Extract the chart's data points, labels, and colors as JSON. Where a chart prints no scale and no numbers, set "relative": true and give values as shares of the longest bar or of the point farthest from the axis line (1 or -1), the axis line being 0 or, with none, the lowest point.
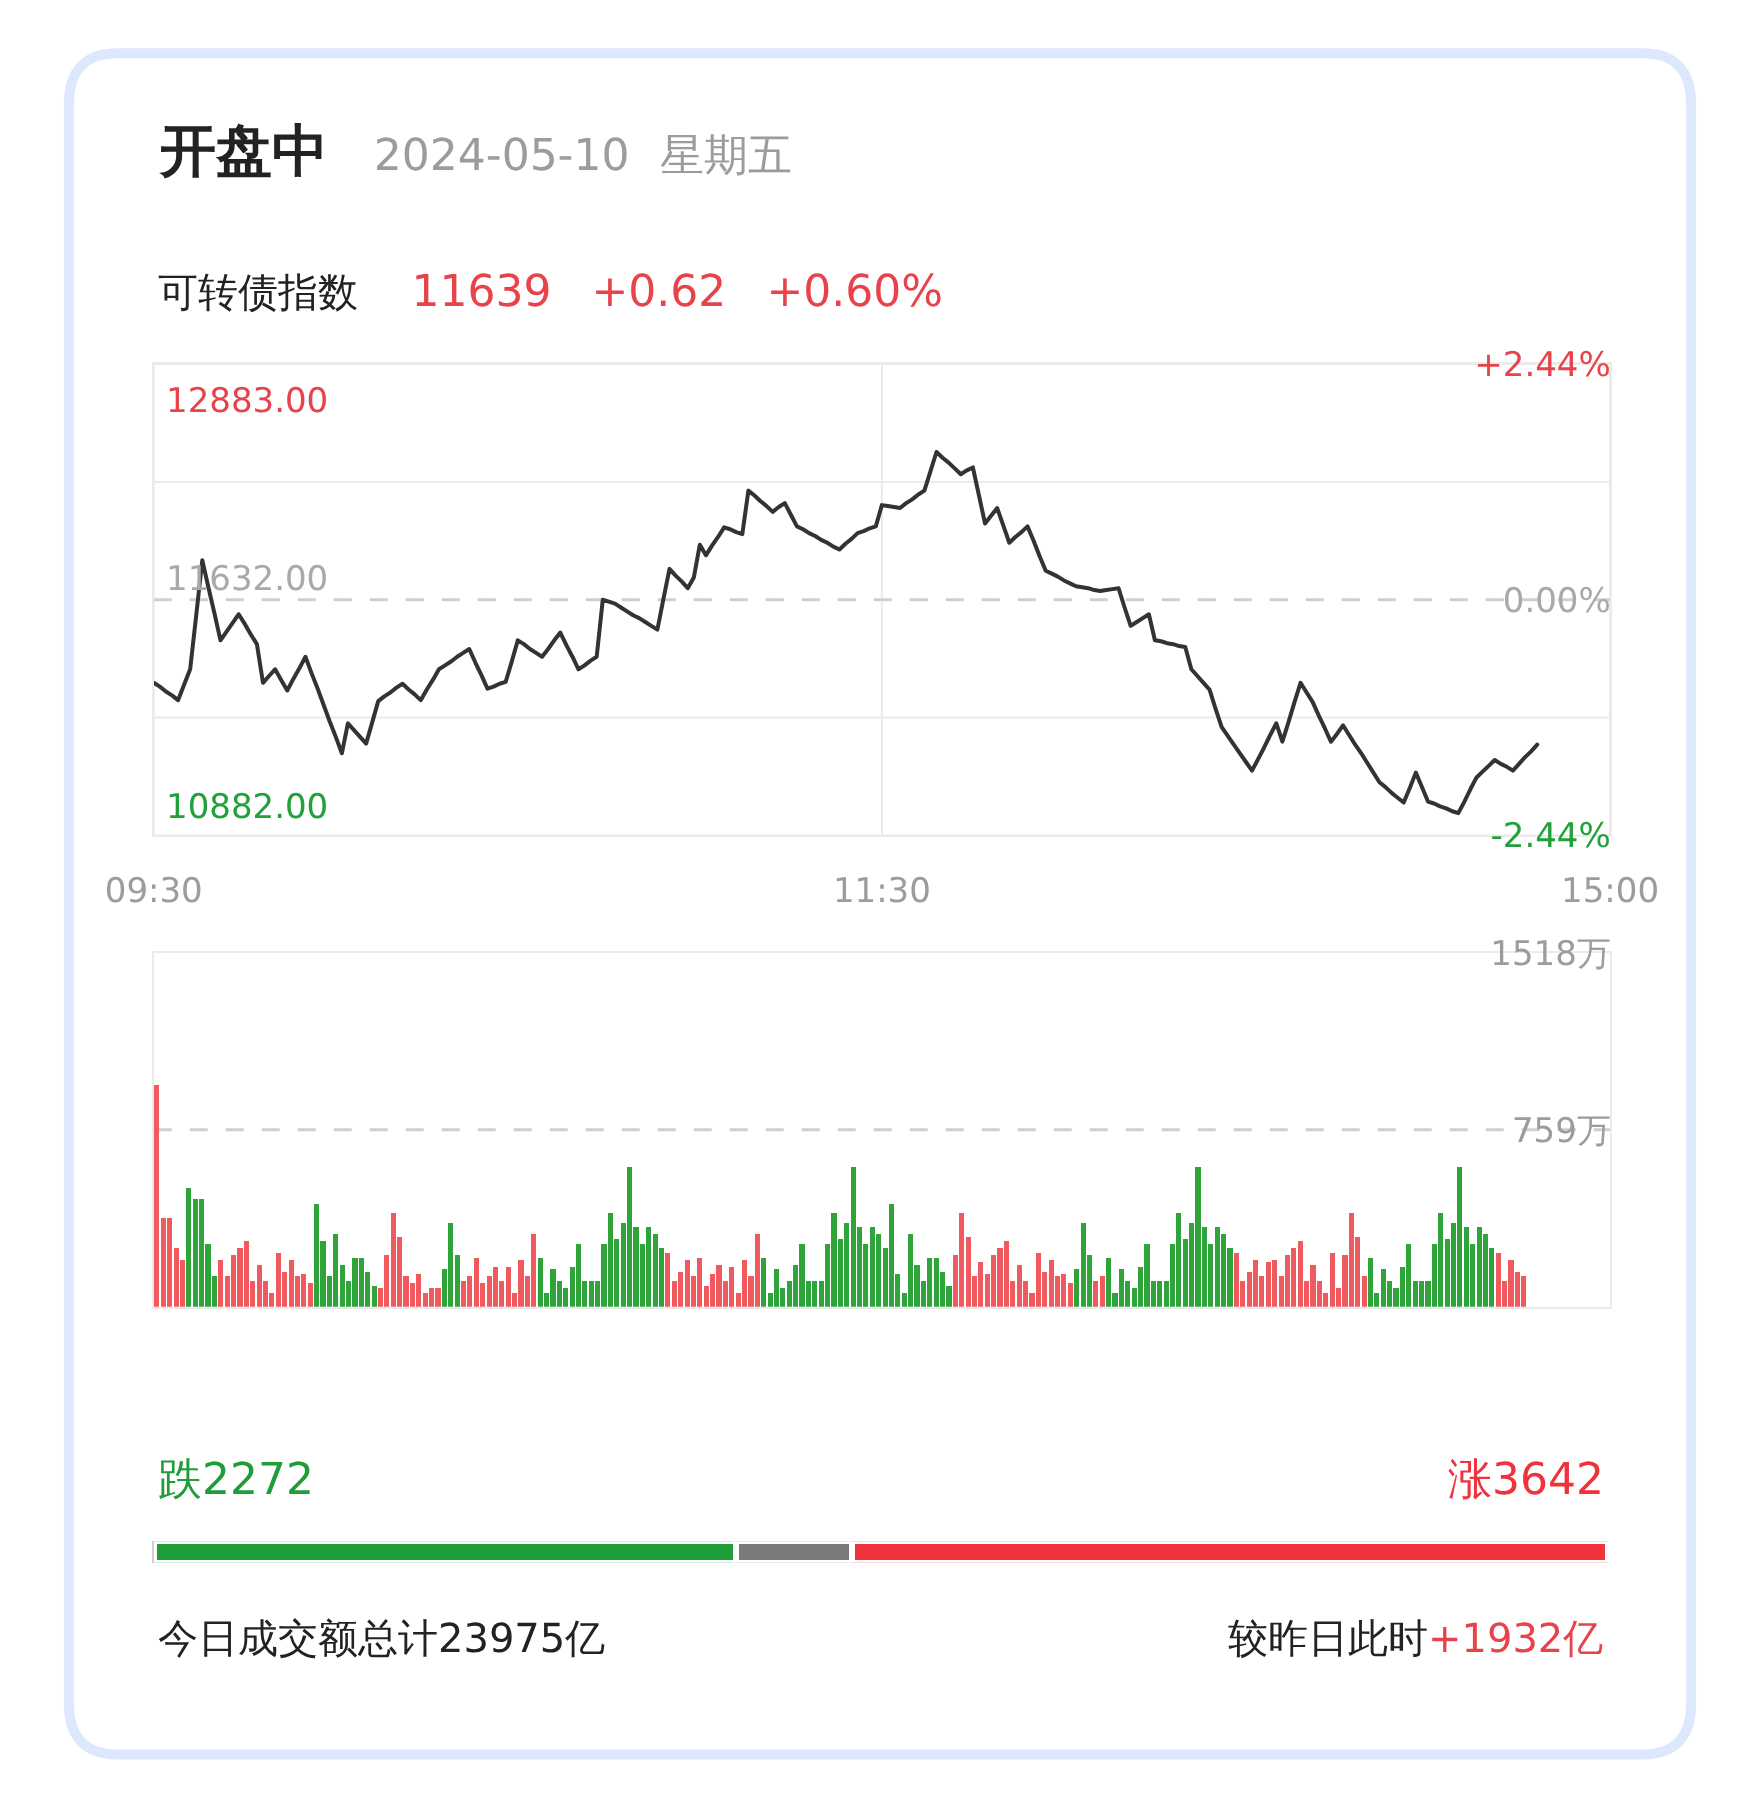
{
  "chart_data": [
    {
      "type": "line",
      "title": "开盘中 2024-05-10 星期五",
      "subtitle": "可转债指数 11639 +0.62 +0.60%",
      "categories": [
        "09:30",
        null,
        null,
        null,
        null,
        null,
        null,
        null,
        null,
        null,
        null,
        null,
        null,
        null,
        null,
        null,
        null,
        null,
        null,
        null,
        null,
        null,
        null,
        null,
        null,
        null,
        null,
        null,
        null,
        null,
        null,
        null,
        null,
        null,
        null,
        null,
        null,
        null,
        null,
        null,
        null,
        null,
        null,
        null,
        null,
        null,
        null,
        null,
        null,
        null,
        null,
        null,
        null,
        null,
        null,
        null,
        null,
        null,
        null,
        null,
        null,
        null,
        null,
        null,
        null,
        null,
        null,
        null,
        null,
        null,
        null,
        null,
        null,
        null,
        null,
        null,
        null,
        null,
        null,
        null,
        null,
        null,
        null,
        null,
        null,
        null,
        null,
        null,
        null,
        null,
        null,
        null,
        null,
        null,
        null,
        null,
        null,
        null,
        null,
        null,
        null,
        null,
        null,
        null,
        null,
        null,
        null,
        null,
        null,
        null,
        null,
        null,
        null,
        null,
        null,
        null,
        null,
        null,
        null,
        null,
        "11:30",
        null,
        null,
        null,
        null,
        null,
        null,
        null,
        null,
        null,
        null,
        null,
        null,
        null,
        null,
        null,
        null,
        null,
        null,
        null,
        null,
        null,
        null,
        null,
        null,
        null,
        null,
        null,
        null,
        null,
        null,
        null,
        null,
        null,
        null,
        null,
        null,
        null,
        null,
        null,
        null,
        null,
        null,
        null,
        null,
        null,
        null,
        null,
        null,
        null,
        null,
        null,
        null,
        null,
        null,
        null,
        null,
        null,
        null,
        null,
        null,
        null,
        null,
        null,
        null,
        null,
        null,
        null,
        null,
        null,
        null,
        null,
        null,
        null,
        null,
        null,
        null,
        null,
        null,
        null,
        null,
        null,
        null,
        null,
        null,
        null,
        null,
        null,
        null,
        null,
        null,
        null,
        null,
        null,
        null,
        null,
        null,
        null,
        null,
        null,
        null,
        null,
        null,
        null,
        null,
        null,
        null,
        null,
        null,
        null,
        null,
        null,
        null,
        null,
        null,
        null,
        null,
        null,
        null,
        null,
        "15:00"
      ],
      "series": [
        {
          "color": "#333333",
          "values": [
            -0.86,
            -0.9,
            -0.95,
            -0.99,
            -1.04,
            -0.88,
            -0.72,
            -0.16,
            0.41,
            0.13,
            -0.14,
            -0.42,
            -0.33,
            -0.24,
            -0.15,
            -0.25,
            -0.36,
            -0.46,
            -0.86,
            -0.79,
            -0.72,
            -0.83,
            -0.94,
            -0.82,
            -0.71,
            -0.59,
            -0.76,
            -0.92,
            -1.09,
            -1.26,
            -1.42,
            -1.59,
            -1.28,
            -1.35,
            -1.42,
            -1.49,
            -1.27,
            -1.05,
            -1.0,
            -0.96,
            -0.91,
            -0.87,
            -0.93,
            -0.98,
            -1.04,
            -0.93,
            -0.83,
            -0.72,
            -0.68,
            -0.64,
            -0.59,
            -0.55,
            -0.51,
            -0.65,
            -0.78,
            -0.92,
            -0.9,
            -0.87,
            -0.85,
            -0.64,
            -0.42,
            -0.46,
            -0.51,
            -0.55,
            -0.59,
            -0.51,
            -0.42,
            -0.34,
            -0.47,
            -0.59,
            -0.72,
            -0.68,
            -0.63,
            -0.59,
            0.0,
            -0.02,
            -0.04,
            -0.08,
            -0.12,
            -0.16,
            -0.19,
            -0.23,
            -0.27,
            -0.31,
            0.01,
            0.32,
            0.25,
            0.19,
            0.12,
            0.23,
            0.57,
            0.46,
            0.56,
            0.65,
            0.75,
            0.73,
            0.7,
            0.68,
            1.13,
            1.08,
            1.02,
            0.97,
            0.91,
            0.96,
            1.0,
            0.88,
            0.76,
            0.73,
            0.69,
            0.66,
            0.62,
            0.59,
            0.55,
            0.52,
            0.58,
            0.63,
            0.69,
            0.71,
            0.74,
            0.76,
            0.98,
            0.97,
            0.96,
            0.95,
            1.0,
            1.04,
            1.09,
            1.13,
            1.33,
            1.53,
            1.47,
            1.42,
            1.36,
            1.3,
            1.34,
            1.37,
            1.08,
            0.79,
            0.87,
            0.95,
            0.77,
            0.59,
            0.65,
            0.7,
            0.76,
            0.61,
            0.45,
            0.3,
            0.27,
            0.24,
            0.2,
            0.17,
            0.14,
            0.13,
            0.12,
            0.1,
            0.09,
            0.1,
            0.11,
            0.12,
            -0.08,
            -0.27,
            -0.23,
            -0.19,
            -0.15,
            -0.42,
            -0.43,
            -0.45,
            -0.46,
            -0.48,
            -0.49,
            -0.72,
            -0.79,
            -0.86,
            -0.93,
            -1.13,
            -1.32,
            -1.41,
            -1.5,
            -1.59,
            -1.68,
            -1.77,
            -1.65,
            -1.53,
            -1.4,
            -1.28,
            -1.47,
            -1.27,
            -1.06,
            -0.86,
            -0.96,
            -1.06,
            -1.2,
            -1.33,
            -1.47,
            -1.39,
            -1.3,
            -1.4,
            -1.5,
            -1.59,
            -1.69,
            -1.79,
            -1.89,
            -1.94,
            -2.0,
            -2.05,
            -2.1,
            -1.95,
            -1.79,
            -1.94,
            -2.09,
            -2.11,
            -2.14,
            -2.16,
            -2.19,
            -2.21,
            -2.09,
            -1.96,
            -1.84,
            -1.78,
            -1.72,
            -1.66,
            -1.7,
            -1.73,
            -1.77,
            -1.7,
            -1.63,
            -1.57,
            -1.5,
            null,
            null,
            null,
            null,
            null,
            null,
            null,
            null,
            null,
            null,
            null,
            null
          ]
        }
      ],
      "ylim": [
        -2.44,
        2.44
      ],
      "yticks": [
        {
          "value": 2.44,
          "label": "+2.44%"
        },
        {
          "value": 1.22,
          "label": null
        },
        {
          "value": 0,
          "label": "0.00%"
        },
        {
          "value": -1.22,
          "label": null
        },
        {
          "value": -2.44,
          "label": "-2.44%"
        }
      ],
      "annotations": [
        "12883.00",
        "11632.00",
        "10882.00"
      ],
      "ref_lines": [
        {
          "axis": "y",
          "value": 0,
          "color": "#cfcfcf",
          "line_style": "dashed"
        }
      ],
      "grid": true,
      "legend": false,
      "marker": "none"
    },
    {
      "type": "bar",
      "categories": [
        null,
        null,
        null,
        null,
        null,
        null,
        null,
        null,
        null,
        null,
        null,
        null,
        null,
        null,
        null,
        null,
        null,
        null,
        null,
        null,
        null,
        null,
        null,
        null,
        null,
        null,
        null,
        null,
        null,
        null,
        null,
        null,
        null,
        null,
        null,
        null,
        null,
        null,
        null,
        null,
        null,
        null,
        null,
        null,
        null,
        null,
        null,
        null,
        null,
        null,
        null,
        null,
        null,
        null,
        null,
        null,
        null,
        null,
        null,
        null,
        null,
        null,
        null,
        null,
        null,
        null,
        null,
        null,
        null,
        null,
        null,
        null,
        null,
        null,
        null,
        null,
        null,
        null,
        null,
        null,
        null,
        null,
        null,
        null,
        null,
        null,
        null,
        null,
        null,
        null,
        null,
        null,
        null,
        null,
        null,
        null,
        null,
        null,
        null,
        null,
        null,
        null,
        null,
        null,
        null,
        null,
        null,
        null,
        null,
        null,
        null,
        null,
        null,
        null,
        null,
        null,
        null,
        null,
        null,
        null,
        null,
        null,
        null,
        null,
        null,
        null,
        null,
        null,
        null,
        null,
        null,
        null,
        null,
        null,
        null,
        null,
        null,
        null,
        null,
        null,
        null,
        null,
        null,
        null,
        null,
        null,
        null,
        null,
        null,
        null,
        null,
        null,
        null,
        null,
        null,
        null,
        null,
        null,
        null,
        null,
        null,
        null,
        null,
        null,
        null,
        null,
        null,
        null,
        null,
        null,
        null,
        null,
        null,
        null,
        null,
        null,
        null,
        null,
        null,
        null,
        null,
        null,
        null,
        null,
        null,
        null,
        null,
        null,
        null,
        null,
        null,
        null,
        null,
        null,
        null,
        null,
        null,
        null,
        null,
        null,
        null,
        null,
        null,
        null,
        null,
        null,
        null,
        null,
        null,
        null,
        null,
        null,
        null,
        null,
        null,
        null,
        null,
        null,
        null,
        null,
        null,
        null,
        null,
        null,
        null,
        null,
        null,
        null
      ],
      "values": [
        950,
        380,
        380,
        250,
        200,
        510,
        460,
        460,
        270,
        130,
        200,
        130,
        220,
        250,
        280,
        110,
        180,
        110,
        60,
        230,
        150,
        200,
        130,
        140,
        100,
        440,
        280,
        130,
        310,
        180,
        110,
        210,
        210,
        150,
        90,
        80,
        220,
        400,
        300,
        130,
        100,
        140,
        60,
        80,
        80,
        160,
        360,
        220,
        110,
        130,
        210,
        100,
        130,
        170,
        110,
        170,
        60,
        200,
        130,
        310,
        210,
        60,
        160,
        110,
        80,
        170,
        270,
        110,
        110,
        110,
        270,
        400,
        290,
        360,
        600,
        340,
        270,
        340,
        310,
        250,
        230,
        110,
        150,
        200,
        130,
        210,
        90,
        140,
        180,
        110,
        170,
        60,
        200,
        130,
        310,
        210,
        60,
        160,
        80,
        110,
        180,
        270,
        110,
        110,
        110,
        270,
        400,
        290,
        360,
        600,
        340,
        270,
        340,
        310,
        250,
        440,
        140,
        60,
        310,
        180,
        110,
        210,
        210,
        150,
        90,
        220,
        400,
        300,
        130,
        190,
        140,
        220,
        250,
        280,
        110,
        180,
        110,
        60,
        230,
        150,
        200,
        130,
        140,
        100,
        160,
        360,
        220,
        110,
        130,
        210,
        60,
        160,
        110,
        80,
        170,
        270,
        110,
        110,
        110,
        270,
        400,
        290,
        360,
        600,
        340,
        270,
        340,
        310,
        250,
        230,
        110,
        150,
        200,
        130,
        190,
        200,
        130,
        220,
        250,
        280,
        110,
        180,
        110,
        60,
        230,
        80,
        220,
        400,
        300,
        130,
        210,
        60,
        160,
        110,
        80,
        170,
        270,
        110,
        110,
        110,
        270,
        400,
        290,
        360,
        600,
        340,
        270,
        340,
        310,
        250,
        230,
        110,
        200,
        150,
        130,
        null,
        null,
        null,
        null,
        null,
        null,
        null,
        null,
        null,
        null,
        null,
        null,
        null
      ],
      "colors": [
        "#f0595e",
        "#f0595e",
        "#f0595e",
        "#f0595e",
        "#f0595e",
        "#2ea43a",
        "#2ea43a",
        "#2ea43a",
        "#2ea43a",
        "#2ea43a",
        "#f0595e",
        "#f0595e",
        "#f0595e",
        "#f0595e",
        "#f0595e",
        "#f0595e",
        "#f0595e",
        "#f0595e",
        "#f0595e",
        "#f0595e",
        "#f0595e",
        "#f0595e",
        "#f0595e",
        "#f0595e",
        "#f0595e",
        "#2ea43a",
        "#2ea43a",
        "#2ea43a",
        "#2ea43a",
        "#2ea43a",
        "#2ea43a",
        "#2ea43a",
        "#2ea43a",
        "#2ea43a",
        "#2ea43a",
        "#f0595e",
        "#f0595e",
        "#f0595e",
        "#f0595e",
        "#f0595e",
        "#f0595e",
        "#f0595e",
        "#f0595e",
        "#f0595e",
        "#f0595e",
        "#2ea43a",
        "#2ea43a",
        "#2ea43a",
        "#f0595e",
        "#f0595e",
        "#f0595e",
        "#f0595e",
        "#f0595e",
        "#f0595e",
        "#f0595e",
        "#f0595e",
        "#f0595e",
        "#f0595e",
        "#f0595e",
        "#f0595e",
        "#2ea43a",
        "#2ea43a",
        "#2ea43a",
        "#2ea43a",
        "#2ea43a",
        "#2ea43a",
        "#2ea43a",
        "#2ea43a",
        "#2ea43a",
        "#2ea43a",
        "#2ea43a",
        "#2ea43a",
        "#2ea43a",
        "#2ea43a",
        "#2ea43a",
        "#2ea43a",
        "#2ea43a",
        "#2ea43a",
        "#2ea43a",
        "#2ea43a",
        "#f0595e",
        "#f0595e",
        "#f0595e",
        "#f0595e",
        "#f0595e",
        "#f0595e",
        "#f0595e",
        "#f0595e",
        "#f0595e",
        "#f0595e",
        "#f0595e",
        "#f0595e",
        "#f0595e",
        "#f0595e",
        "#f0595e",
        "#2ea43a",
        "#2ea43a",
        "#2ea43a",
        "#2ea43a",
        "#2ea43a",
        "#2ea43a",
        "#2ea43a",
        "#2ea43a",
        "#2ea43a",
        "#2ea43a",
        "#2ea43a",
        "#2ea43a",
        "#2ea43a",
        "#2ea43a",
        "#2ea43a",
        "#2ea43a",
        "#2ea43a",
        "#2ea43a",
        "#2ea43a",
        "#2ea43a",
        "#2ea43a",
        "#2ea43a",
        "#2ea43a",
        "#2ea43a",
        "#2ea43a",
        "#2ea43a",
        "#2ea43a",
        "#2ea43a",
        "#2ea43a",
        "#2ea43a",
        "#f0595e",
        "#f0595e",
        "#f0595e",
        "#f0595e",
        "#f0595e",
        "#f0595e",
        "#f0595e",
        "#f0595e",
        "#f0595e",
        "#f0595e",
        "#f0595e",
        "#f0595e",
        "#f0595e",
        "#f0595e",
        "#f0595e",
        "#f0595e",
        "#f0595e",
        "#f0595e",
        "#f0595e",
        "#2ea43a",
        "#2ea43a",
        "#2ea43a",
        "#f0595e",
        "#f0595e",
        "#2ea43a",
        "#2ea43a",
        "#2ea43a",
        "#2ea43a",
        "#2ea43a",
        "#2ea43a",
        "#2ea43a",
        "#2ea43a",
        "#2ea43a",
        "#2ea43a",
        "#2ea43a",
        "#2ea43a",
        "#2ea43a",
        "#2ea43a",
        "#2ea43a",
        "#2ea43a",
        "#2ea43a",
        "#2ea43a",
        "#2ea43a",
        "#2ea43a",
        "#f0595e",
        "#f0595e",
        "#f0595e",
        "#f0595e",
        "#f0595e",
        "#f0595e",
        "#f0595e",
        "#f0595e",
        "#f0595e",
        "#f0595e",
        "#f0595e",
        "#f0595e",
        "#f0595e",
        "#f0595e",
        "#f0595e",
        "#f0595e",
        "#f0595e",
        "#f0595e",
        "#f0595e",
        "#f0595e",
        "#f0595e",
        "#2ea43a",
        "#2ea43a",
        "#2ea43a",
        "#2ea43a",
        "#2ea43a",
        "#2ea43a",
        "#2ea43a",
        "#2ea43a",
        "#2ea43a",
        "#2ea43a",
        "#2ea43a",
        "#2ea43a",
        "#2ea43a",
        "#2ea43a",
        "#2ea43a",
        "#2ea43a",
        "#2ea43a",
        "#2ea43a",
        "#2ea43a",
        "#2ea43a",
        "#f0595e",
        "#f0595e",
        "#f0595e",
        "#f0595e",
        "#f0595e",
        null,
        null,
        null,
        null,
        null,
        null,
        null,
        null,
        null,
        null,
        null,
        null,
        null
      ],
      "ylim": [
        0,
        1518
      ],
      "yticks": [
        {
          "value": 1518,
          "label": "1518万"
        },
        {
          "value": 759,
          "label": "759万"
        }
      ],
      "ref_lines": [
        {
          "axis": "y",
          "value": 759,
          "color": "#cfcfcf",
          "line_style": "dashed"
        }
      ],
      "tick_labels": "y",
      "legend": false
    },
    {
      "type": "bar",
      "orientation": "horizontal",
      "stacked": true,
      "relative": true,
      "categories": [
        null
      ],
      "series": [
        {
          "name": "跌2272",
          "color": "#1f9d3a",
          "values": [
            0.4
          ]
        },
        {
          "color": "#7a7a7a",
          "values": [
            0.08
          ]
        },
        {
          "name": "涨3642",
          "color": "#f0323c",
          "values": [
            0.52
          ]
        }
      ],
      "annotations": [
        "今日成交额总计23975亿",
        "较昨日此时+1932亿"
      ],
      "legend": false
    }
  ]
}
